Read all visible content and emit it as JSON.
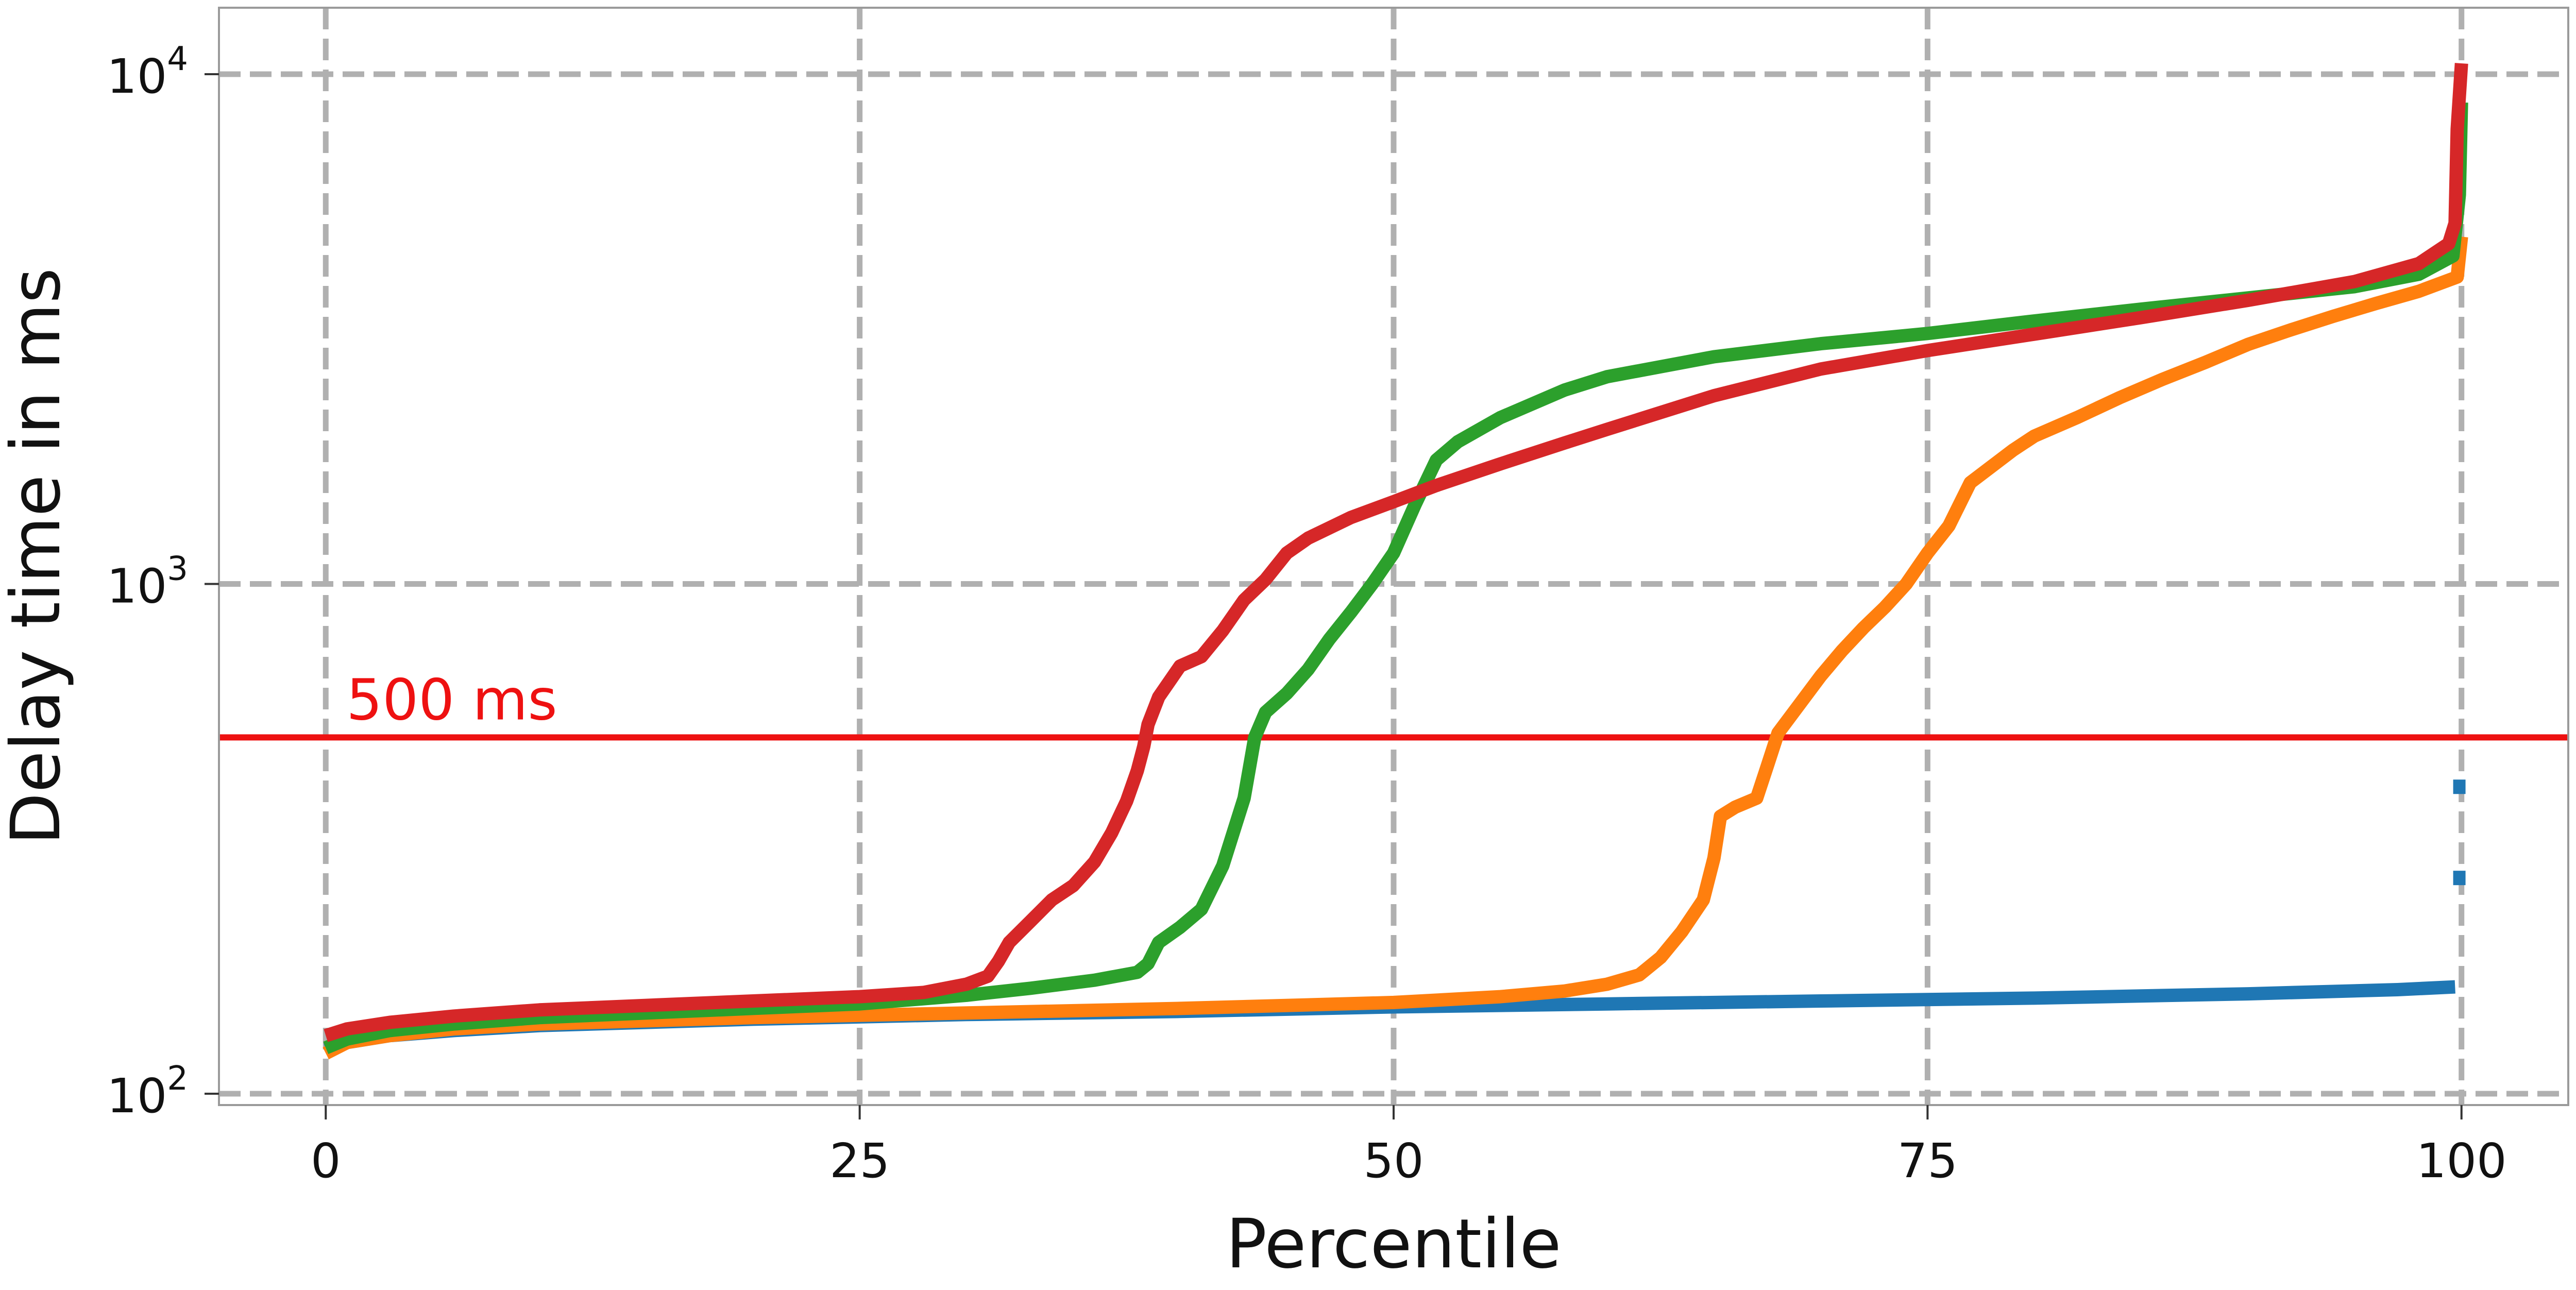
{
  "chart_data": {
    "type": "line",
    "title": "",
    "xlabel": "Percentile",
    "ylabel": "Delay time in ms",
    "xlim": [
      -5,
      105
    ],
    "ylim": [
      95,
      13500
    ],
    "yscale": "log",
    "x_ticks": [
      0,
      25,
      50,
      75,
      100
    ],
    "x_tick_labels": [
      "0",
      "25",
      "50",
      "75",
      "100"
    ],
    "y_ticks": [
      100,
      1000,
      10000
    ],
    "y_tick_labels": [
      {
        "base": "10",
        "exp": "2"
      },
      {
        "base": "10",
        "exp": "3"
      },
      {
        "base": "10",
        "exp": "4"
      }
    ],
    "grid": true,
    "legend": "none",
    "threshold": {
      "value": 500,
      "label": "500 ms",
      "color": "#ee1111"
    },
    "series": [
      {
        "color": "#1f77b4",
        "points": [
          [
            0,
            122
          ],
          [
            1,
            126
          ],
          [
            3,
            130
          ],
          [
            6,
            133
          ],
          [
            10,
            136
          ],
          [
            20,
            140
          ],
          [
            30,
            143
          ],
          [
            40,
            145
          ],
          [
            50,
            148
          ],
          [
            60,
            150
          ],
          [
            70,
            152
          ],
          [
            80,
            154
          ],
          [
            90,
            157
          ],
          [
            97,
            160
          ],
          [
            99.7,
            162
          ]
        ],
        "extra_points": [
          [
            99.9,
            265
          ],
          [
            99.9,
            400
          ]
        ]
      },
      {
        "color": "#ff7f0e",
        "points": [
          [
            0,
            120
          ],
          [
            1,
            126
          ],
          [
            3,
            130
          ],
          [
            6,
            134
          ],
          [
            10,
            137
          ],
          [
            20,
            141
          ],
          [
            30,
            144
          ],
          [
            40,
            147
          ],
          [
            50,
            151
          ],
          [
            55,
            155
          ],
          [
            58,
            159
          ],
          [
            60,
            164
          ],
          [
            61.5,
            171
          ],
          [
            62.5,
            185
          ],
          [
            63.5,
            208
          ],
          [
            64.5,
            240
          ],
          [
            65,
            290
          ],
          [
            65.3,
            350
          ],
          [
            66,
            365
          ],
          [
            67,
            380
          ],
          [
            67.5,
            440
          ],
          [
            68,
            510
          ],
          [
            69,
            580
          ],
          [
            70,
            660
          ],
          [
            71,
            740
          ],
          [
            72,
            820
          ],
          [
            73,
            900
          ],
          [
            74,
            1000
          ],
          [
            75,
            1150
          ],
          [
            76,
            1300
          ],
          [
            77,
            1580
          ],
          [
            78,
            1700
          ],
          [
            79,
            1830
          ],
          [
            80,
            1950
          ],
          [
            82,
            2120
          ],
          [
            84,
            2320
          ],
          [
            86,
            2520
          ],
          [
            88,
            2720
          ],
          [
            90,
            2950
          ],
          [
            92,
            3150
          ],
          [
            94,
            3350
          ],
          [
            96,
            3550
          ],
          [
            98,
            3750
          ],
          [
            99.8,
            4000
          ],
          [
            100,
            4800
          ]
        ]
      },
      {
        "color": "#2ca02c",
        "points": [
          [
            0,
            123
          ],
          [
            1,
            128
          ],
          [
            3,
            133
          ],
          [
            6,
            137
          ],
          [
            10,
            141
          ],
          [
            20,
            147
          ],
          [
            25,
            150
          ],
          [
            30,
            156
          ],
          [
            33,
            161
          ],
          [
            36,
            167
          ],
          [
            38,
            173
          ],
          [
            38.5,
            180
          ],
          [
            39,
            198
          ],
          [
            40,
            212
          ],
          [
            41,
            230
          ],
          [
            42,
            280
          ],
          [
            43,
            380
          ],
          [
            43.5,
            500
          ],
          [
            44,
            560
          ],
          [
            45,
            610
          ],
          [
            46,
            680
          ],
          [
            47,
            780
          ],
          [
            48,
            880
          ],
          [
            49,
            1000
          ],
          [
            50,
            1150
          ],
          [
            51,
            1430
          ],
          [
            52,
            1750
          ],
          [
            53,
            1900
          ],
          [
            55,
            2120
          ],
          [
            58,
            2400
          ],
          [
            60,
            2550
          ],
          [
            65,
            2790
          ],
          [
            70,
            2960
          ],
          [
            75,
            3100
          ],
          [
            80,
            3280
          ],
          [
            85,
            3460
          ],
          [
            90,
            3640
          ],
          [
            95,
            3830
          ],
          [
            98,
            4050
          ],
          [
            99.6,
            4400
          ],
          [
            99.9,
            5800
          ],
          [
            100,
            8800
          ]
        ]
      },
      {
        "color": "#d62728",
        "points": [
          [
            0,
            130
          ],
          [
            1,
            134
          ],
          [
            3,
            138
          ],
          [
            6,
            142
          ],
          [
            10,
            146
          ],
          [
            15,
            149
          ],
          [
            20,
            152
          ],
          [
            25,
            155
          ],
          [
            28,
            158
          ],
          [
            30,
            164
          ],
          [
            31,
            170
          ],
          [
            31.5,
            182
          ],
          [
            32,
            198
          ],
          [
            33,
            218
          ],
          [
            34,
            240
          ],
          [
            35,
            256
          ],
          [
            36,
            285
          ],
          [
            36.8,
            325
          ],
          [
            37.5,
            375
          ],
          [
            38,
            430
          ],
          [
            38.3,
            480
          ],
          [
            38.5,
            530
          ],
          [
            39,
            600
          ],
          [
            40,
            690
          ],
          [
            41,
            720
          ],
          [
            42,
            810
          ],
          [
            43,
            930
          ],
          [
            44,
            1020
          ],
          [
            45,
            1150
          ],
          [
            46,
            1230
          ],
          [
            48,
            1350
          ],
          [
            50,
            1450
          ],
          [
            52,
            1560
          ],
          [
            55,
            1720
          ],
          [
            58,
            1890
          ],
          [
            60,
            2010
          ],
          [
            65,
            2340
          ],
          [
            70,
            2640
          ],
          [
            75,
            2870
          ],
          [
            80,
            3090
          ],
          [
            85,
            3330
          ],
          [
            90,
            3600
          ],
          [
            95,
            3920
          ],
          [
            98,
            4250
          ],
          [
            99.4,
            4650
          ],
          [
            99.7,
            5100
          ],
          [
            99.8,
            7800
          ],
          [
            100,
            10500
          ]
        ]
      }
    ]
  }
}
